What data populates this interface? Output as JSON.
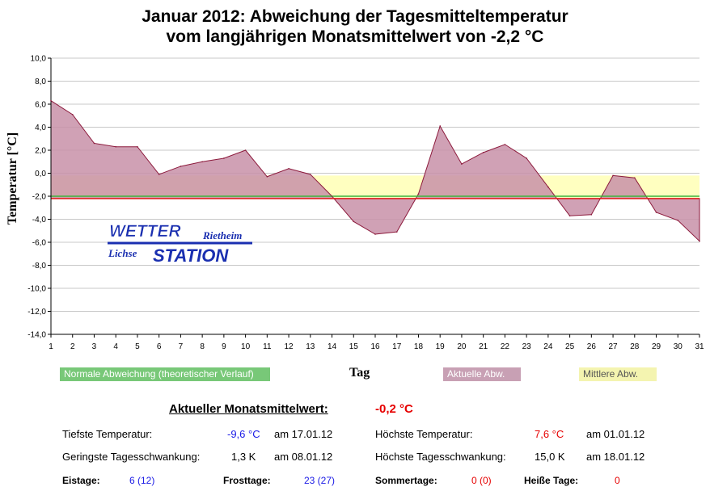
{
  "title_line1": "Januar 2012: Abweichung der Tagesmitteltemperatur",
  "title_line2": "vom langjährigen Monatsmittelwert von -2,2 °C",
  "logo": {
    "line1": "WETTER",
    "line2": "Rietheim",
    "line3": "Lichse",
    "line4": "STATION"
  },
  "legend": {
    "normal": "Normale Abweichung (theoretischer Verlauf)",
    "actual": "Aktuelle Abw.",
    "mean": "Mittlere Abw."
  },
  "stats": {
    "monthly_label": "Aktueller Monatsmittelwert:",
    "monthly_value": "-0,2 °C",
    "min_temp_label": "Tiefste Temperatur:",
    "min_temp_value": "-9,6 °C",
    "min_temp_date": "am 17.01.12",
    "max_temp_label": "Höchste Temperatur:",
    "max_temp_value": "7,6 °C",
    "max_temp_date": "am 01.01.12",
    "min_range_label": "Geringste Tagesschwankung:",
    "min_range_value": "1,3 K",
    "min_range_date": "am 08.01.12",
    "max_range_label": "Höchste Tagesschwankung:",
    "max_range_value": "15,0 K",
    "max_range_date": "am 18.01.12",
    "ice_label": "Eistage:",
    "ice_value": "6 (12)",
    "frost_label": "Frosttage:",
    "frost_value": "23 (27)",
    "summer_label": "Sommertage:",
    "summer_value": "0 (0)",
    "hot_label": "Heiße Tage:",
    "hot_value": "0"
  },
  "colors": {
    "actual_fill": "#c890a8",
    "actual_line": "#8c1a3c",
    "mean_fill": "#ffffc0",
    "normal_line": "#3cb43c",
    "normal_label_bg": "#78c878",
    "actual_label_bg": "#c8a0b4",
    "mean_label_bg": "#f4f4b0",
    "zero_line": "#e01e1e",
    "grid": "#c8c8c8"
  },
  "chart_data": {
    "type": "area",
    "title": "Januar 2012: Abweichung der Tagesmitteltemperatur vom langjährigen Monatsmittelwert von -2,2 °C",
    "xlabel": "Tag",
    "ylabel": "Temperatur [°C]",
    "x": [
      1,
      2,
      3,
      4,
      5,
      6,
      7,
      8,
      9,
      10,
      11,
      12,
      13,
      14,
      15,
      16,
      17,
      18,
      19,
      20,
      21,
      22,
      23,
      24,
      25,
      26,
      27,
      28,
      29,
      30,
      31
    ],
    "ylim": [
      -14,
      10
    ],
    "yticks": [
      "10,0",
      "8,0",
      "6,0",
      "4,0",
      "2,0",
      "0,0",
      "-2,0",
      "-4,0",
      "-6,0",
      "-8,0",
      "-10,0",
      "-12,0",
      "-14,0"
    ],
    "reference_line": -2.2,
    "normal_deviation": -2.0,
    "mean_deviation": -0.2,
    "series": [
      {
        "name": "Aktuelle Abw.",
        "values": [
          6.3,
          5.1,
          2.6,
          2.3,
          2.3,
          -0.1,
          0.6,
          1.0,
          1.3,
          2.0,
          -0.3,
          0.4,
          -0.1,
          -2.0,
          -4.2,
          -5.3,
          -5.1,
          -1.8,
          4.1,
          0.8,
          1.8,
          2.5,
          1.3,
          -1.2,
          -3.7,
          -3.6,
          -0.2,
          -0.4,
          -3.4,
          -4.1,
          -5.9
        ]
      }
    ]
  }
}
